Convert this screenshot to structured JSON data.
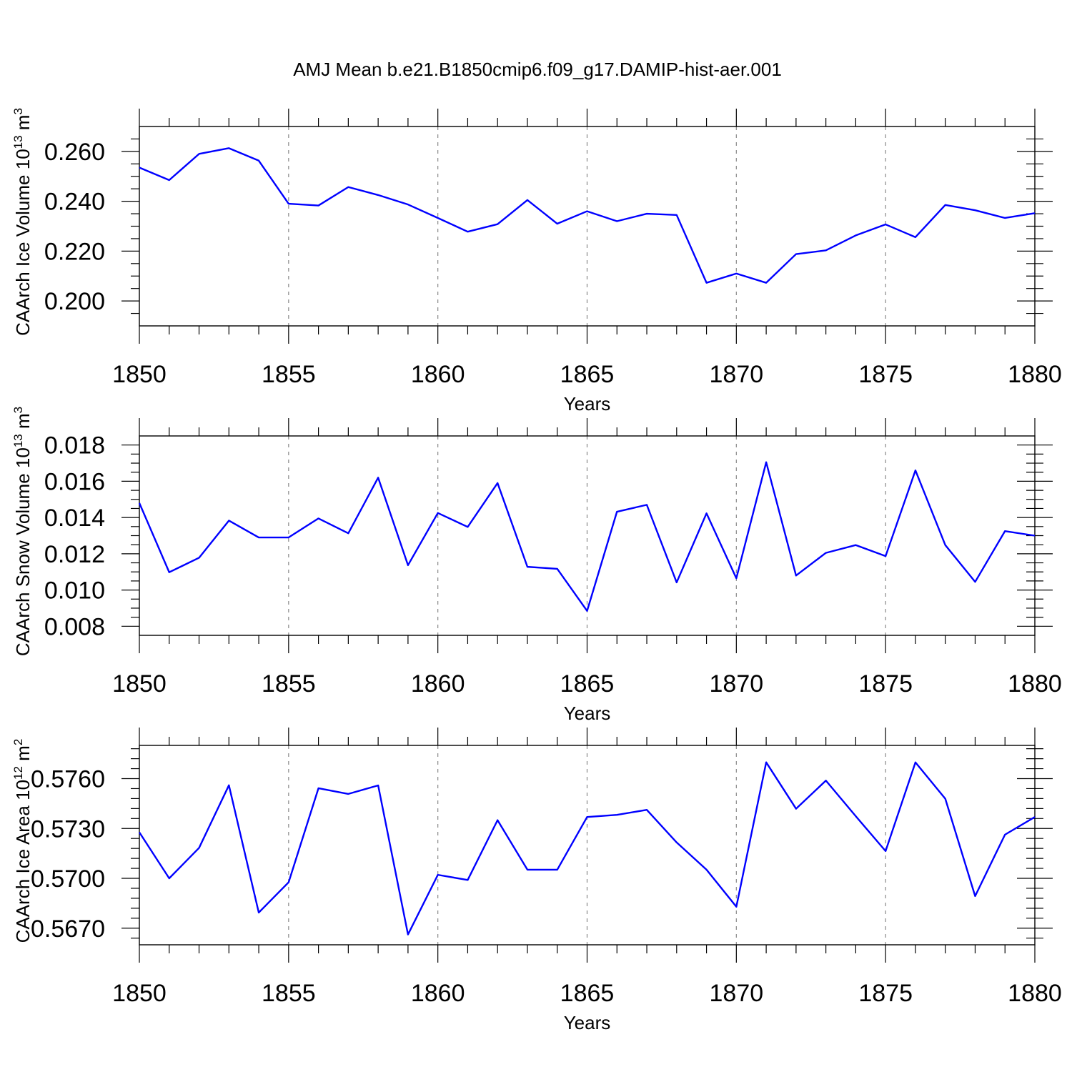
{
  "title": "AMJ Mean b.e21.B1850cmip6.f09_g17.DAMIP-hist-aer.001",
  "line_color": "#0000ff",
  "chart_data": [
    {
      "type": "line",
      "ylabel": {
        "text": "CAArch Ice Volume 10",
        "sup1": "13",
        "mid": " m",
        "sup2": "3"
      },
      "xlabel": "Years",
      "xlim": [
        1850,
        1880
      ],
      "ylim": [
        0.19,
        0.27
      ],
      "xticks": [
        1850,
        1855,
        1860,
        1865,
        1870,
        1875,
        1880
      ],
      "xtick_labels": [
        "1850",
        "1855",
        "1860",
        "1865",
        "1870",
        "1875",
        "1880"
      ],
      "yticks": [
        0.2,
        0.22,
        0.24,
        0.26
      ],
      "ytick_labels": [
        "0.200",
        "0.220",
        "0.240",
        "0.260"
      ],
      "minor_y_step": 0.005,
      "grid": "vertical dashed at major x ticks",
      "series": [
        {
          "x": [
            1850,
            1851,
            1852,
            1853,
            1854,
            1855,
            1856,
            1857,
            1858,
            1859,
            1860,
            1861,
            1862,
            1863,
            1864,
            1865,
            1866,
            1867,
            1868,
            1869,
            1870,
            1871,
            1872,
            1873,
            1874,
            1875,
            1876,
            1877,
            1878,
            1879,
            1880
          ],
          "values": [
            0.2535,
            0.2485,
            0.259,
            0.2613,
            0.2563,
            0.239,
            0.2383,
            0.2457,
            0.2425,
            0.2387,
            0.2333,
            0.2278,
            0.2308,
            0.2405,
            0.231,
            0.236,
            0.232,
            0.235,
            0.2345,
            0.2073,
            0.211,
            0.2073,
            0.2188,
            0.2203,
            0.2263,
            0.2307,
            0.2256,
            0.2385,
            0.2364,
            0.2333,
            0.2352
          ]
        }
      ]
    },
    {
      "type": "line",
      "ylabel": {
        "text": "CAArch Snow Volume 10",
        "sup1": "13",
        "mid": " m",
        "sup2": "3"
      },
      "xlabel": "Years",
      "xlim": [
        1850,
        1880
      ],
      "ylim": [
        0.0075,
        0.0185
      ],
      "xticks": [
        1850,
        1855,
        1860,
        1865,
        1870,
        1875,
        1880
      ],
      "xtick_labels": [
        "1850",
        "1855",
        "1860",
        "1865",
        "1870",
        "1875",
        "1880"
      ],
      "yticks": [
        0.008,
        0.01,
        0.012,
        0.014,
        0.016,
        0.018
      ],
      "ytick_labels": [
        "0.008",
        "0.010",
        "0.012",
        "0.014",
        "0.016",
        "0.018"
      ],
      "minor_y_step": 0.0005,
      "grid": "vertical dashed at major x ticks",
      "series": [
        {
          "x": [
            1850,
            1851,
            1852,
            1853,
            1854,
            1855,
            1856,
            1857,
            1858,
            1859,
            1860,
            1861,
            1862,
            1863,
            1864,
            1865,
            1866,
            1867,
            1868,
            1869,
            1870,
            1871,
            1872,
            1873,
            1874,
            1875,
            1876,
            1877,
            1878,
            1879,
            1880
          ],
          "values": [
            0.0148,
            0.01098,
            0.01178,
            0.01383,
            0.0129,
            0.0129,
            0.01395,
            0.01313,
            0.0162,
            0.01137,
            0.01425,
            0.01348,
            0.0159,
            0.01128,
            0.01117,
            0.00885,
            0.01432,
            0.0147,
            0.01042,
            0.01423,
            0.01065,
            0.01705,
            0.0108,
            0.01205,
            0.01248,
            0.01187,
            0.0166,
            0.01248,
            0.01045,
            0.01325,
            0.013
          ]
        }
      ]
    },
    {
      "type": "line",
      "ylabel": {
        "text": "CAArch Ice Area 10",
        "sup1": "12",
        "mid": " m",
        "sup2": "2"
      },
      "xlabel": "Years",
      "xlim": [
        1850,
        1880
      ],
      "ylim": [
        0.566,
        0.578
      ],
      "xticks": [
        1850,
        1855,
        1860,
        1865,
        1870,
        1875,
        1880
      ],
      "xtick_labels": [
        "1850",
        "1855",
        "1860",
        "1865",
        "1870",
        "1875",
        "1880"
      ],
      "yticks": [
        0.567,
        0.57,
        0.573,
        0.576
      ],
      "ytick_labels": [
        "0.5670",
        "0.5700",
        "0.5730",
        "0.5760"
      ],
      "minor_y_step": 0.0006,
      "grid": "vertical dashed at major x ticks",
      "series": [
        {
          "x": [
            1850,
            1851,
            1852,
            1853,
            1854,
            1855,
            1856,
            1857,
            1858,
            1859,
            1860,
            1861,
            1862,
            1863,
            1864,
            1865,
            1866,
            1867,
            1868,
            1869,
            1870,
            1871,
            1872,
            1873,
            1874,
            1875,
            1876,
            1877,
            1878,
            1879,
            1880
          ],
          "values": [
            0.57277,
            0.57,
            0.57183,
            0.5756,
            0.56794,
            0.56976,
            0.57542,
            0.57508,
            0.57559,
            0.56662,
            0.57021,
            0.5699,
            0.5735,
            0.57052,
            0.57052,
            0.57369,
            0.57382,
            0.57412,
            0.57216,
            0.57052,
            0.56829,
            0.57698,
            0.57419,
            0.57588,
            0.57374,
            0.57164,
            0.57698,
            0.57479,
            0.56893,
            0.57263,
            0.57369
          ]
        }
      ]
    }
  ]
}
